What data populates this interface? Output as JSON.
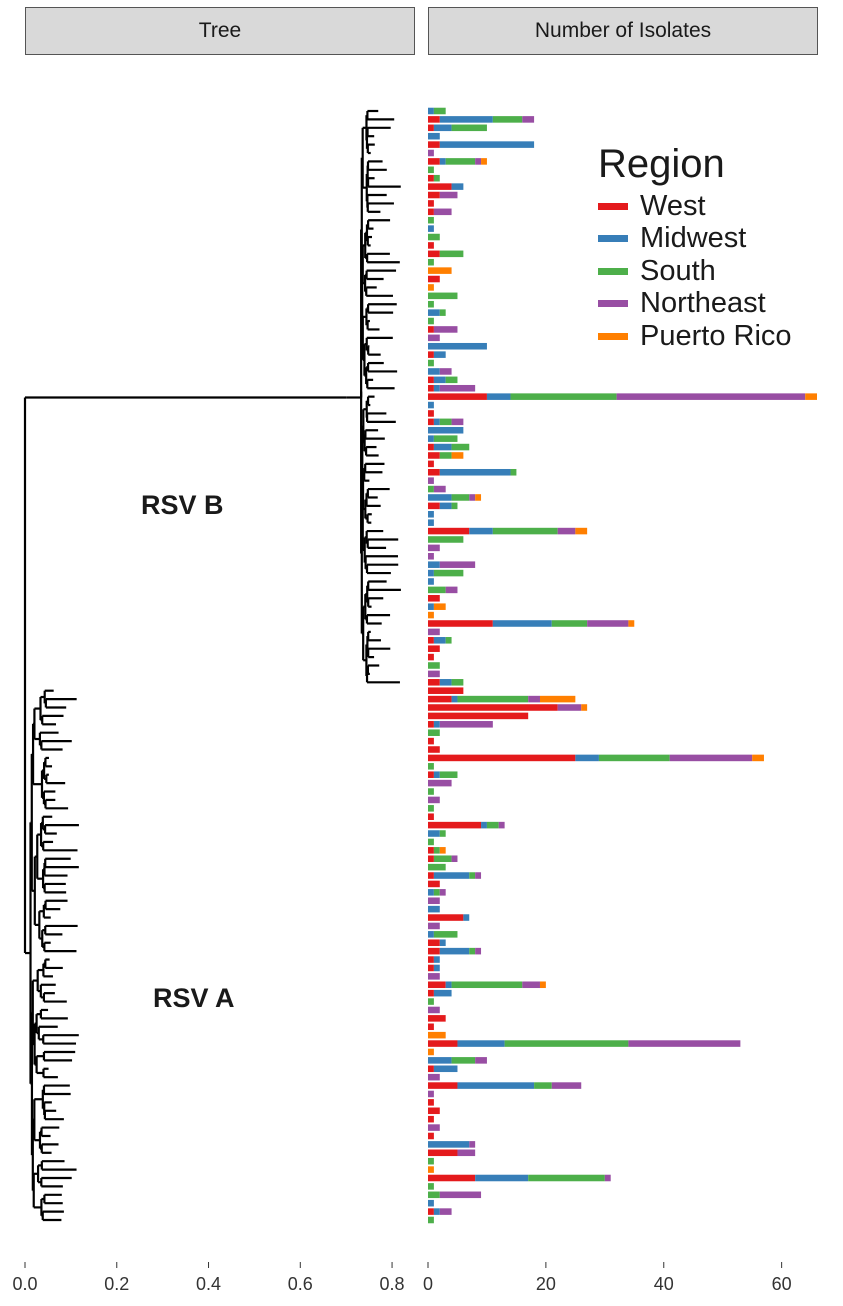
{
  "facets": {
    "tree_title": "Tree",
    "isolates_title": "Number of Isolates"
  },
  "clades": {
    "b_label": "RSV B",
    "a_label": "RSV A"
  },
  "legend": {
    "title": "Region",
    "items": [
      {
        "label": "West",
        "color": "#e41a1c"
      },
      {
        "label": "Midwest",
        "color": "#377eb8"
      },
      {
        "label": "South",
        "color": "#4daf4a"
      },
      {
        "label": "Northeast",
        "color": "#984ea3"
      },
      {
        "label": "Puerto Rico",
        "color": "#ff7f00"
      }
    ]
  },
  "chart_data": [
    {
      "type": "tree",
      "title": "Tree",
      "xlim": [
        0,
        0.85
      ],
      "x_ticks": [
        "0.0",
        "0.2",
        "0.4",
        "0.6",
        "0.8"
      ],
      "root_depth": 0.0,
      "clades": [
        {
          "name": "RSV B",
          "split_depth": 0.7,
          "tip_depth_range": [
            0.75,
            0.82
          ]
        },
        {
          "name": "RSV A",
          "split_depth": 0.0,
          "tip_depth_range": [
            0.05,
            0.12
          ]
        }
      ]
    },
    {
      "type": "bar",
      "orientation": "horizontal",
      "stacked": true,
      "title": "Number of Isolates",
      "xlim": [
        0,
        66
      ],
      "x_ticks": [
        "0",
        "20",
        "40",
        "60"
      ],
      "series_order": [
        "West",
        "Midwest",
        "South",
        "Northeast",
        "Puerto Rico"
      ],
      "colors": [
        "#e41a1c",
        "#377eb8",
        "#4daf4a",
        "#984ea3",
        "#ff7f00"
      ],
      "bars": [
        [
          0,
          1,
          2,
          0,
          0
        ],
        [
          2,
          9,
          5,
          2,
          0
        ],
        [
          1,
          3,
          6,
          0,
          0
        ],
        [
          0,
          2,
          0,
          0,
          0
        ],
        [
          2,
          16,
          0,
          0,
          0
        ],
        [
          0,
          0,
          0,
          1,
          0
        ],
        [
          2,
          1,
          5,
          1,
          1
        ],
        [
          0,
          0,
          1,
          0,
          0
        ],
        [
          1,
          0,
          1,
          0,
          0
        ],
        [
          4,
          2,
          0,
          0,
          0
        ],
        [
          2,
          0,
          0,
          3,
          0
        ],
        [
          1,
          0,
          0,
          0,
          0
        ],
        [
          1,
          0,
          0,
          3,
          0
        ],
        [
          0,
          0,
          1,
          0,
          0
        ],
        [
          0,
          1,
          0,
          0,
          0
        ],
        [
          0,
          0,
          2,
          0,
          0
        ],
        [
          1,
          0,
          0,
          0,
          0
        ],
        [
          2,
          0,
          4,
          0,
          0
        ],
        [
          0,
          0,
          1,
          0,
          0
        ],
        [
          0,
          0,
          0,
          0,
          4
        ],
        [
          2,
          0,
          0,
          0,
          0
        ],
        [
          0,
          0,
          0,
          0,
          1
        ],
        [
          0,
          0,
          5,
          0,
          0
        ],
        [
          0,
          0,
          1,
          0,
          0
        ],
        [
          0,
          2,
          1,
          0,
          0
        ],
        [
          0,
          0,
          1,
          0,
          0
        ],
        [
          1,
          0,
          0,
          4,
          0
        ],
        [
          0,
          0,
          0,
          2,
          0
        ],
        [
          0,
          10,
          0,
          0,
          0
        ],
        [
          1,
          2,
          0,
          0,
          0
        ],
        [
          0,
          0,
          1,
          0,
          0
        ],
        [
          0,
          2,
          0,
          2,
          0
        ],
        [
          1,
          2,
          2,
          0,
          0
        ],
        [
          1,
          1,
          0,
          6,
          0
        ],
        [
          10,
          4,
          18,
          32,
          2
        ],
        [
          0,
          1,
          0,
          0,
          0
        ],
        [
          1,
          0,
          0,
          0,
          0
        ],
        [
          1,
          1,
          2,
          2,
          0
        ],
        [
          0,
          6,
          0,
          0,
          0
        ],
        [
          0,
          1,
          4,
          0,
          0
        ],
        [
          1,
          3,
          3,
          0,
          0
        ],
        [
          2,
          0,
          2,
          0,
          2
        ],
        [
          1,
          0,
          0,
          0,
          0
        ],
        [
          2,
          12,
          1,
          0,
          0
        ],
        [
          0,
          0,
          0,
          1,
          0
        ],
        [
          0,
          0,
          1,
          2,
          0
        ],
        [
          0,
          4,
          3,
          1,
          1
        ],
        [
          2,
          2,
          1,
          0,
          0
        ],
        [
          0,
          1,
          0,
          0,
          0
        ],
        [
          0,
          1,
          0,
          0,
          0
        ],
        [
          7,
          4,
          11,
          3,
          2
        ],
        [
          0,
          0,
          6,
          0,
          0
        ],
        [
          0,
          0,
          0,
          2,
          0
        ],
        [
          0,
          0,
          0,
          1,
          0
        ],
        [
          0,
          2,
          0,
          6,
          0
        ],
        [
          0,
          1,
          5,
          0,
          0
        ],
        [
          0,
          1,
          0,
          0,
          0
        ],
        [
          0,
          0,
          3,
          2,
          0
        ],
        [
          2,
          0,
          0,
          0,
          0
        ],
        [
          0,
          1,
          0,
          0,
          2
        ],
        [
          0,
          0,
          0,
          0,
          1
        ],
        [
          11,
          10,
          6,
          7,
          1
        ],
        [
          0,
          0,
          0,
          2,
          0
        ],
        [
          1,
          2,
          1,
          0,
          0
        ],
        [
          2,
          0,
          0,
          0,
          0
        ],
        [
          1,
          0,
          0,
          0,
          0
        ],
        [
          0,
          0,
          2,
          0,
          0
        ],
        [
          0,
          0,
          0,
          2,
          0
        ],
        [
          2,
          2,
          2,
          0,
          0
        ],
        [
          6,
          0,
          0,
          0,
          0
        ],
        [
          4,
          1,
          12,
          2,
          6
        ],
        [
          22,
          0,
          0,
          4,
          1
        ],
        [
          17,
          0,
          0,
          0,
          0
        ],
        [
          1,
          1,
          0,
          9,
          0
        ],
        [
          0,
          0,
          2,
          0,
          0
        ],
        [
          1,
          0,
          0,
          0,
          0
        ],
        [
          2,
          0,
          0,
          0,
          0
        ],
        [
          25,
          4,
          12,
          14,
          2
        ],
        [
          0,
          0,
          1,
          0,
          0
        ],
        [
          1,
          1,
          3,
          0,
          0
        ],
        [
          0,
          0,
          0,
          4,
          0
        ],
        [
          0,
          0,
          1,
          0,
          0
        ],
        [
          0,
          0,
          0,
          2,
          0
        ],
        [
          0,
          0,
          1,
          0,
          0
        ],
        [
          1,
          0,
          0,
          0,
          0
        ],
        [
          9,
          1,
          2,
          1,
          0
        ],
        [
          0,
          2,
          1,
          0,
          0
        ],
        [
          0,
          0,
          1,
          0,
          0
        ],
        [
          1,
          0,
          1,
          0,
          1
        ],
        [
          1,
          0,
          3,
          1,
          0
        ],
        [
          0,
          0,
          3,
          0,
          0
        ],
        [
          1,
          6,
          1,
          1,
          0
        ],
        [
          2,
          0,
          0,
          0,
          0
        ],
        [
          0,
          1,
          1,
          1,
          0
        ],
        [
          0,
          0,
          0,
          2,
          0
        ],
        [
          0,
          2,
          0,
          0,
          0
        ],
        [
          6,
          1,
          0,
          0,
          0
        ],
        [
          0,
          0,
          0,
          2,
          0
        ],
        [
          0,
          1,
          4,
          0,
          0
        ],
        [
          2,
          1,
          0,
          0,
          0
        ],
        [
          2,
          5,
          1,
          1,
          0
        ],
        [
          1,
          1,
          0,
          0,
          0
        ],
        [
          1,
          1,
          0,
          0,
          0
        ],
        [
          0,
          0,
          0,
          2,
          0
        ],
        [
          3,
          1,
          12,
          3,
          1
        ],
        [
          1,
          3,
          0,
          0,
          0
        ],
        [
          0,
          0,
          1,
          0,
          0
        ],
        [
          0,
          0,
          0,
          2,
          0
        ],
        [
          3,
          0,
          0,
          0,
          0
        ],
        [
          1,
          0,
          0,
          0,
          0
        ],
        [
          0,
          0,
          0,
          0,
          3
        ],
        [
          5,
          8,
          21,
          19,
          0
        ],
        [
          0,
          0,
          0,
          0,
          1
        ],
        [
          0,
          4,
          4,
          2,
          0
        ],
        [
          1,
          4,
          0,
          0,
          0
        ],
        [
          0,
          0,
          0,
          2,
          0
        ],
        [
          5,
          13,
          3,
          5,
          0
        ],
        [
          0,
          0,
          0,
          1,
          0
        ],
        [
          1,
          0,
          0,
          0,
          0
        ],
        [
          2,
          0,
          0,
          0,
          0
        ],
        [
          1,
          0,
          0,
          0,
          0
        ],
        [
          0,
          0,
          0,
          2,
          0
        ],
        [
          1,
          0,
          0,
          0,
          0
        ],
        [
          0,
          7,
          0,
          1,
          0
        ],
        [
          5,
          0,
          0,
          3,
          0
        ],
        [
          0,
          0,
          1,
          0,
          0
        ],
        [
          0,
          0,
          0,
          0,
          1
        ],
        [
          8,
          9,
          13,
          1,
          0
        ],
        [
          0,
          0,
          1,
          0,
          0
        ],
        [
          0,
          0,
          2,
          7,
          0
        ],
        [
          0,
          1,
          0,
          0,
          0
        ],
        [
          1,
          1,
          0,
          2,
          0
        ],
        [
          0,
          0,
          1,
          0,
          0
        ]
      ]
    }
  ]
}
